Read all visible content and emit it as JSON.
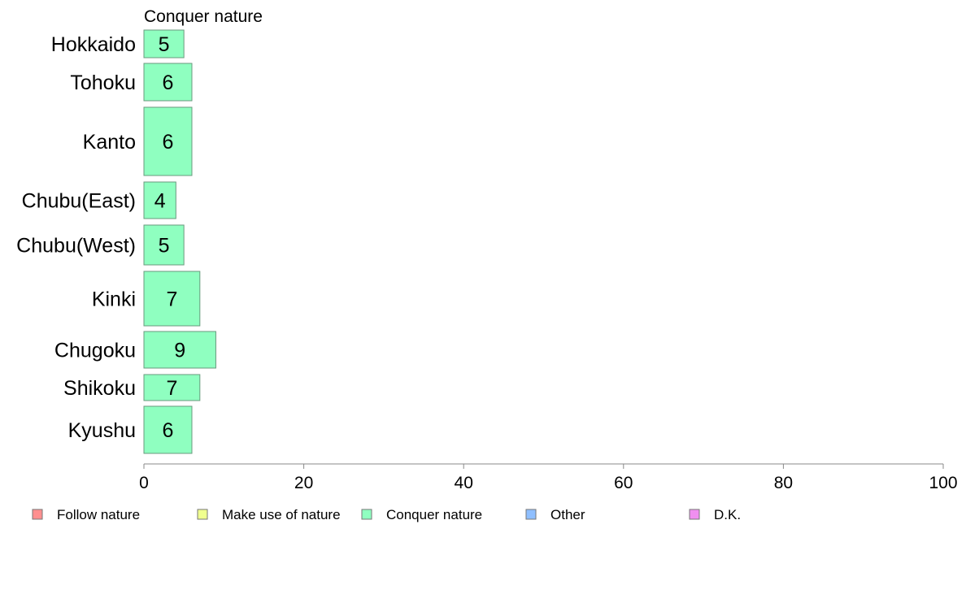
{
  "chart_data": {
    "type": "bar",
    "orientation": "horizontal",
    "title": "Conquer nature",
    "categories": [
      "Hokkaido",
      "Tohoku",
      "Kanto",
      "Chubu(East)",
      "Chubu(West)",
      "Kinki",
      "Chugoku",
      "Shikoku",
      "Kyushu"
    ],
    "series": [
      {
        "name": "Conquer nature",
        "color": "#8fffc0",
        "values": [
          5,
          6,
          6,
          4,
          5,
          7,
          9,
          7,
          6
        ],
        "data_labels": [
          "5",
          "6",
          "6",
          "4",
          "5",
          "7",
          "9",
          "7",
          "6"
        ]
      }
    ],
    "xlim": [
      0,
      100
    ],
    "xticks": [
      0,
      20,
      40,
      60,
      80,
      100
    ],
    "xlabel": "",
    "ylabel": "",
    "grid": false,
    "legend_position": "bottom",
    "legend": [
      {
        "label": "Follow nature",
        "color": "#ff8f8f"
      },
      {
        "label": "Make use of nature",
        "color": "#f0ff8f"
      },
      {
        "label": "Conquer nature",
        "color": "#8fffc0"
      },
      {
        "label": "Other",
        "color": "#8fbfff"
      },
      {
        "label": "D.K.",
        "color": "#f08ff0"
      }
    ],
    "bar_border_color": "#6a9a7e",
    "axis_color": "#888888"
  }
}
